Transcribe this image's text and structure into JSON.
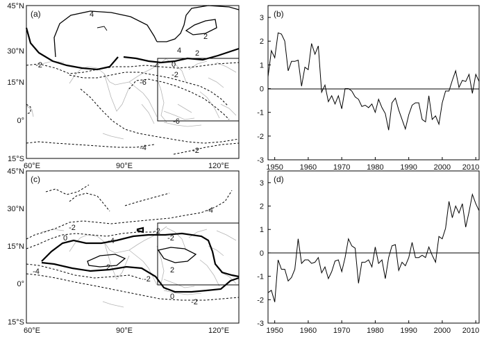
{
  "chart_data": [
    {
      "panel": "(a)",
      "type": "contour-map",
      "lon_ticks": [
        "60°E",
        "90°E",
        "120°E"
      ],
      "lat_ticks": [
        "45°N",
        "30°N",
        "15°N",
        "0°",
        "15°S"
      ],
      "xlim": [
        60,
        127
      ],
      "ylim": [
        -15,
        45
      ],
      "region_box": {
        "lon": [
          100,
          127
        ],
        "lat": [
          1,
          25
        ]
      },
      "contour_labels": [
        "4",
        "2",
        "-2",
        "4",
        "2",
        "0",
        "-2",
        "-4",
        "-6",
        "-6",
        "-4",
        "-2"
      ]
    },
    {
      "panel": "(b)",
      "type": "line",
      "x_ticks": [
        "1950",
        "1960",
        "1970",
        "1980",
        "1990",
        "2000",
        "2010"
      ],
      "y_ticks": [
        "3",
        "2",
        "1",
        "0",
        "-1",
        "-2",
        "-3"
      ],
      "xlim": [
        1948,
        2011
      ],
      "ylim": [
        -3,
        3.5
      ],
      "x": [
        1948,
        1949,
        1950,
        1951,
        1952,
        1953,
        1954,
        1955,
        1956,
        1957,
        1958,
        1959,
        1960,
        1961,
        1962,
        1963,
        1964,
        1965,
        1966,
        1967,
        1968,
        1969,
        1970,
        1971,
        1972,
        1973,
        1974,
        1975,
        1976,
        1977,
        1978,
        1979,
        1980,
        1981,
        1982,
        1983,
        1984,
        1985,
        1986,
        1987,
        1988,
        1989,
        1990,
        1991,
        1992,
        1993,
        1994,
        1995,
        1996,
        1997,
        1998,
        1999,
        2000,
        2001,
        2002,
        2003,
        2004,
        2005,
        2006,
        2007,
        2008,
        2009,
        2010,
        2011
      ],
      "values": [
        0.5,
        1.6,
        1.3,
        2.35,
        2.3,
        2.0,
        0.75,
        1.15,
        1.15,
        1.2,
        0.1,
        0.9,
        0.8,
        1.9,
        1.45,
        1.8,
        -0.15,
        0.15,
        -0.55,
        -0.3,
        -0.65,
        -0.3,
        -0.85,
        0.0,
        0.0,
        -0.1,
        -0.35,
        -0.45,
        -0.75,
        -0.7,
        -0.8,
        -0.65,
        -1.0,
        -0.45,
        -0.8,
        -1.05,
        -1.75,
        -0.6,
        -0.4,
        -0.9,
        -1.3,
        -1.7,
        -1.1,
        -0.7,
        -0.6,
        -0.6,
        -1.3,
        -1.4,
        -0.3,
        -1.3,
        -1.15,
        -1.5,
        -0.6,
        -0.1,
        -0.1,
        0.35,
        0.75,
        0.05,
        0.35,
        0.3,
        0.6,
        -0.2,
        0.6,
        0.3
      ]
    },
    {
      "panel": "(c)",
      "type": "contour-map",
      "lon_ticks": [
        "60°E",
        "90°E",
        "120°E"
      ],
      "lat_ticks": [
        "45°N",
        "30°N",
        "15°N",
        "0°",
        "15°S"
      ],
      "xlim": [
        60,
        127
      ],
      "ylim": [
        -15,
        45
      ],
      "region_box": {
        "lon": [
          100,
          127
        ],
        "lat": [
          0,
          25
        ]
      },
      "contour_labels": [
        "-4",
        "-2",
        "-4",
        "0",
        "-2",
        "-2",
        "-4",
        "2",
        "2",
        "-2",
        "0",
        "-2"
      ]
    },
    {
      "panel": "(d)",
      "type": "line",
      "x_ticks": [
        "1950",
        "1960",
        "1970",
        "1980",
        "1990",
        "2000",
        "2010"
      ],
      "y_ticks": [
        "3",
        "2",
        "1",
        "0",
        "-1",
        "-2",
        "-3"
      ],
      "xlim": [
        1948,
        2011
      ],
      "ylim": [
        -3,
        3.5
      ],
      "x": [
        1948,
        1949,
        1950,
        1951,
        1952,
        1953,
        1954,
        1955,
        1956,
        1957,
        1958,
        1959,
        1960,
        1961,
        1962,
        1963,
        1964,
        1965,
        1966,
        1967,
        1968,
        1969,
        1970,
        1971,
        1972,
        1973,
        1974,
        1975,
        1976,
        1977,
        1978,
        1979,
        1980,
        1981,
        1982,
        1983,
        1984,
        1985,
        1986,
        1987,
        1988,
        1989,
        1990,
        1991,
        1992,
        1993,
        1994,
        1995,
        1996,
        1997,
        1998,
        1999,
        2000,
        2001,
        2002,
        2003,
        2004,
        2005,
        2006,
        2007,
        2008,
        2009,
        2010,
        2011
      ],
      "values": [
        -1.7,
        -1.6,
        -2.1,
        -0.3,
        -0.7,
        -0.7,
        -1.2,
        -1.05,
        -0.7,
        0.6,
        -0.45,
        -0.3,
        -0.3,
        -0.45,
        -0.4,
        -0.2,
        -0.85,
        -0.6,
        -1.1,
        -0.8,
        -0.35,
        -0.3,
        -0.8,
        -0.2,
        0.6,
        0.3,
        0.2,
        -1.3,
        -0.4,
        -0.4,
        -0.3,
        -0.6,
        0.25,
        -0.45,
        -0.3,
        -1.1,
        -0.2,
        0.3,
        0.35,
        -0.75,
        -0.4,
        -0.55,
        -0.2,
        0.45,
        -0.2,
        -0.2,
        -0.1,
        -0.2,
        0.25,
        -0.1,
        -0.4,
        0.7,
        0.6,
        1.05,
        2.2,
        1.5,
        2.0,
        1.7,
        2.1,
        1.1,
        1.75,
        2.5,
        2.1,
        1.8
      ]
    }
  ]
}
